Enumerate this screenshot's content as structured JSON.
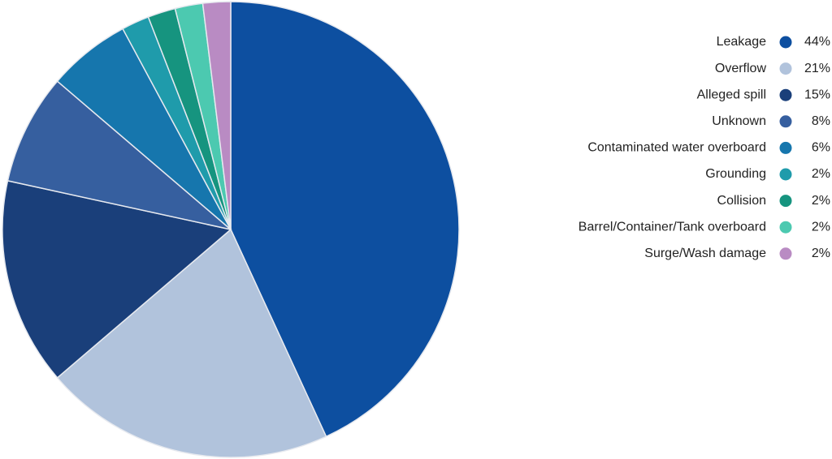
{
  "chart_data": {
    "type": "pie",
    "categories": [
      "Leakage",
      "Overflow",
      "Alleged spill",
      "Unknown",
      "Contaminated water overboard",
      "Grounding",
      "Collision",
      "Barrel/Container/Tank overboard",
      "Surge/Wash damage"
    ],
    "values": [
      44,
      21,
      15,
      8,
      6,
      2,
      2,
      2,
      2
    ],
    "value_labels": [
      "44%",
      "21%",
      "15%",
      "8%",
      "6%",
      "2%",
      "2%",
      "2%",
      "2%"
    ],
    "colors": [
      "#0d4fa0",
      "#b1c3dc",
      "#1a3f7a",
      "#365f9f",
      "#1676ad",
      "#1f9bab",
      "#16947f",
      "#4cc9b0",
      "#b98bc3"
    ],
    "legend": "right"
  }
}
